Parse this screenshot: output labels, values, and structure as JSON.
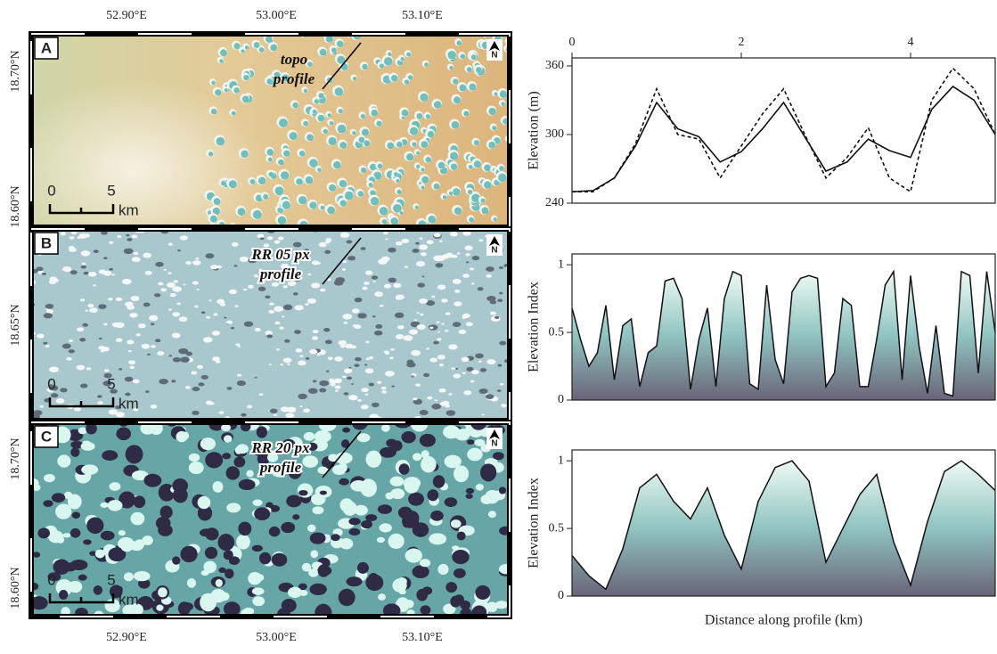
{
  "maps": [
    {
      "label": "A",
      "annotation": [
        "topo",
        "profile"
      ],
      "lat_labels": [
        "18.70°N",
        "18.60°N"
      ],
      "scale": [
        "0",
        "5",
        "km"
      ],
      "north": "N"
    },
    {
      "label": "B",
      "annotation": [
        "RR 05 px",
        "profile"
      ],
      "lat_labels": [
        "18.65°N"
      ],
      "scale": [
        "0",
        "5",
        "km"
      ],
      "north": "N"
    },
    {
      "label": "C",
      "annotation": [
        "RR 20 px",
        "profile"
      ],
      "lat_labels": [
        "18.70°N",
        "18.60°N"
      ],
      "scale": [
        "0",
        "5",
        "km"
      ],
      "north": "N"
    }
  ],
  "lon_labels": [
    "52.90°E",
    "53.00°E",
    "53.10°E"
  ],
  "chart_data": [
    {
      "type": "line",
      "ylabel": "Elevation (m)",
      "xlim": [
        0,
        5
      ],
      "xticks": [
        0,
        2,
        4
      ],
      "ylim": [
        240,
        367
      ],
      "yticks": [
        240,
        300,
        360
      ],
      "x": [
        0,
        0.25,
        0.5,
        0.75,
        1.0,
        1.25,
        1.5,
        1.75,
        2.0,
        2.25,
        2.5,
        2.75,
        3.0,
        3.25,
        3.5,
        3.75,
        4.0,
        4.25,
        4.5,
        4.75,
        5.0
      ],
      "series": [
        {
          "color": "#111111",
          "dash": false,
          "values": [
            250,
            251,
            262,
            290,
            328,
            305,
            298,
            276,
            285,
            305,
            328,
            298,
            268,
            276,
            296,
            286,
            280,
            322,
            342,
            330,
            300
          ]
        },
        {
          "color": "#111111",
          "dash": true,
          "values": [
            250,
            250,
            262,
            292,
            340,
            300,
            296,
            262,
            290,
            318,
            340,
            300,
            262,
            280,
            306,
            262,
            250,
            330,
            358,
            340,
            300
          ]
        }
      ]
    },
    {
      "type": "area",
      "ylabel": "Elevation Index",
      "xlim": [
        0,
        5
      ],
      "ylim": [
        0,
        1.08
      ],
      "yticks": [
        0,
        0.5,
        1
      ],
      "gradient": [
        "#eefaf4",
        "#8fc4c0",
        "#6a6478"
      ],
      "x": [
        0,
        0.1,
        0.2,
        0.3,
        0.4,
        0.5,
        0.6,
        0.7,
        0.8,
        0.9,
        1.0,
        1.1,
        1.2,
        1.3,
        1.4,
        1.5,
        1.6,
        1.7,
        1.8,
        1.9,
        2.0,
        2.1,
        2.2,
        2.3,
        2.4,
        2.5,
        2.6,
        2.7,
        2.8,
        2.9,
        3.0,
        3.1,
        3.2,
        3.3,
        3.4,
        3.5,
        3.6,
        3.7,
        3.8,
        3.9,
        4.0,
        4.1,
        4.2,
        4.3,
        4.4,
        4.5,
        4.6,
        4.7,
        4.8,
        4.9,
        5.0
      ],
      "series": [
        {
          "color": "#111111",
          "values": [
            0.68,
            0.45,
            0.25,
            0.35,
            0.7,
            0.15,
            0.55,
            0.6,
            0.1,
            0.35,
            0.4,
            0.88,
            0.9,
            0.75,
            0.08,
            0.45,
            0.68,
            0.1,
            0.75,
            0.95,
            0.92,
            0.12,
            0.08,
            0.85,
            0.3,
            0.12,
            0.8,
            0.9,
            0.92,
            0.9,
            0.1,
            0.2,
            0.75,
            0.7,
            0.1,
            0.1,
            0.45,
            0.85,
            0.95,
            0.15,
            0.92,
            0.4,
            0.05,
            0.55,
            0.05,
            0.03,
            0.95,
            0.92,
            0.2,
            0.95,
            0.5
          ]
        }
      ]
    },
    {
      "type": "area",
      "ylabel": "Elevation Index",
      "xlabel": "Distance along profile (km)",
      "xlim": [
        0,
        5
      ],
      "ylim": [
        0,
        1.08
      ],
      "yticks": [
        0,
        0.5,
        1
      ],
      "gradient": [
        "#eefaf4",
        "#8fc4c0",
        "#6a6478"
      ],
      "x": [
        0,
        0.2,
        0.4,
        0.6,
        0.8,
        1.0,
        1.2,
        1.4,
        1.6,
        1.8,
        2.0,
        2.2,
        2.4,
        2.6,
        2.8,
        3.0,
        3.2,
        3.4,
        3.6,
        3.8,
        4.0,
        4.2,
        4.4,
        4.6,
        4.8,
        5.0
      ],
      "series": [
        {
          "color": "#111111",
          "values": [
            0.3,
            0.15,
            0.05,
            0.35,
            0.8,
            0.9,
            0.7,
            0.57,
            0.8,
            0.45,
            0.2,
            0.7,
            0.95,
            1.0,
            0.85,
            0.25,
            0.5,
            0.75,
            0.9,
            0.4,
            0.08,
            0.55,
            0.92,
            1.0,
            0.9,
            0.78
          ]
        }
      ]
    }
  ]
}
